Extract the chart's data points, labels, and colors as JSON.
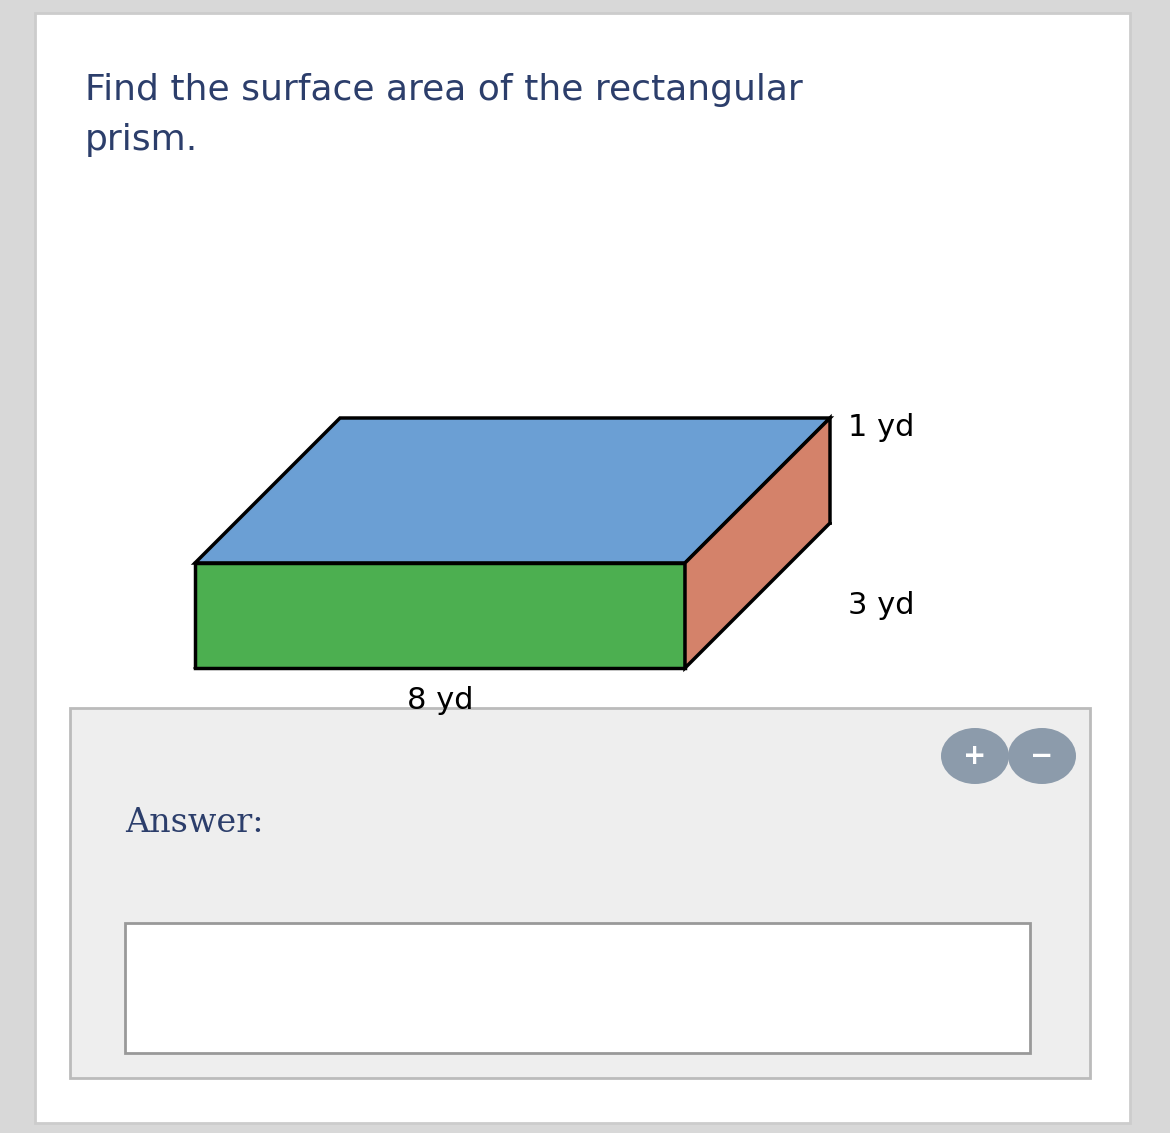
{
  "title_line1": "Find the surface area of the rectangular",
  "title_line2": "prism.",
  "dim_length": "8 yd",
  "dim_width": "3 yd",
  "dim_height": "1 yd",
  "top_color": "#6B9FD4",
  "front_color": "#4CAF50",
  "side_color": "#D4826A",
  "edge_color": "#000000",
  "bg_color": "#FFFFFF",
  "answer_bg": "#EEEEEE",
  "answer_border": "#BBBBBB",
  "input_bg": "#FFFFFF",
  "input_border": "#999999",
  "title_color": "#2C3E6B",
  "answer_label_color": "#2C3E6B",
  "button_color": "#8C9BAB",
  "page_bg": "#D8D8D8",
  "label_fontsize": 22,
  "title_fontsize": 26
}
